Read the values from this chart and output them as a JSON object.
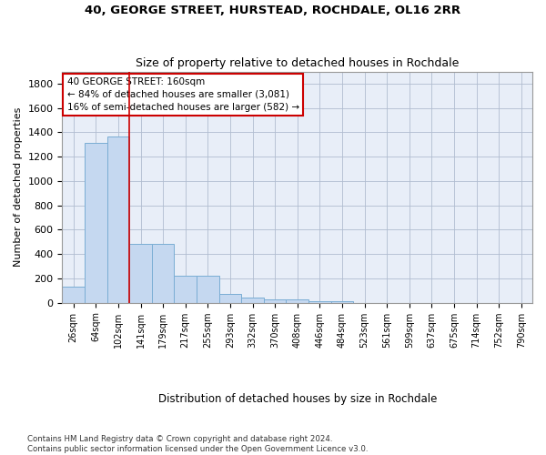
{
  "title": "40, GEORGE STREET, HURSTEAD, ROCHDALE, OL16 2RR",
  "subtitle": "Size of property relative to detached houses in Rochdale",
  "xlabel": "Distribution of detached houses by size in Rochdale",
  "ylabel": "Number of detached properties",
  "bar_color": "#c5d8f0",
  "bar_edge_color": "#7aadd4",
  "background_color": "#e8eef8",
  "grid_color": "#b0bcd0",
  "categories": [
    "26sqm",
    "64sqm",
    "102sqm",
    "141sqm",
    "179sqm",
    "217sqm",
    "255sqm",
    "293sqm",
    "332sqm",
    "370sqm",
    "408sqm",
    "446sqm",
    "484sqm",
    "523sqm",
    "561sqm",
    "599sqm",
    "637sqm",
    "675sqm",
    "714sqm",
    "752sqm",
    "790sqm"
  ],
  "values": [
    135,
    1310,
    1365,
    485,
    485,
    220,
    220,
    75,
    45,
    25,
    25,
    15,
    15,
    0,
    0,
    0,
    0,
    0,
    0,
    0,
    0
  ],
  "ylim": [
    0,
    1900
  ],
  "yticks": [
    0,
    200,
    400,
    600,
    800,
    1000,
    1200,
    1400,
    1600,
    1800
  ],
  "red_line_x": 2.5,
  "annotation_text": "40 GEORGE STREET: 160sqm\n← 84% of detached houses are smaller (3,081)\n16% of semi-detached houses are larger (582) →",
  "annotation_box_color": "#ffffff",
  "annotation_border_color": "#cc0000",
  "footer": "Contains HM Land Registry data © Crown copyright and database right 2024.\nContains public sector information licensed under the Open Government Licence v3.0."
}
